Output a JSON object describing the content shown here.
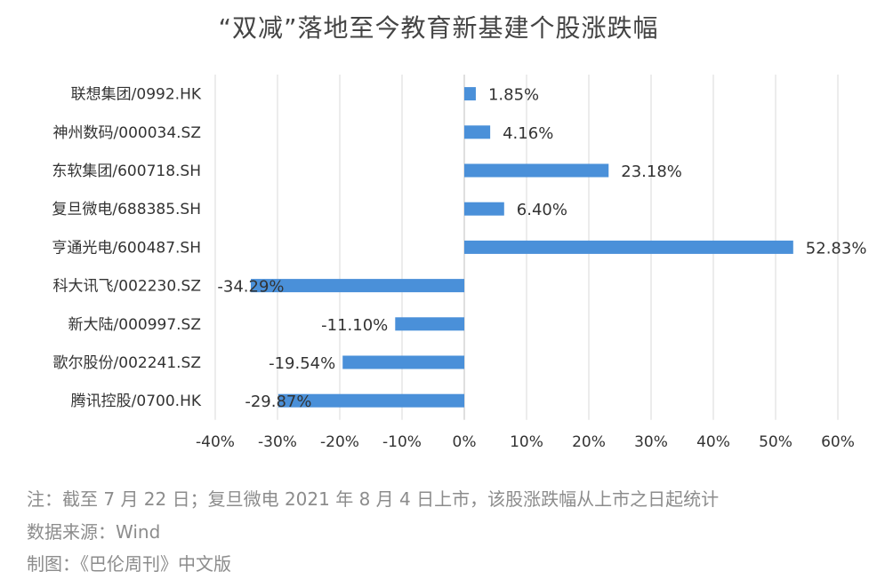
{
  "chart_data": {
    "type": "bar",
    "orientation": "horizontal",
    "title": "“双减”落地至今教育新基建个股涨跌幅",
    "categories": [
      "联想集团/0992.HK",
      "神州数码/000034.SZ",
      "东软集团/600718.SH",
      "复旦微电/688385.SH",
      "亨通光电/600487.SH",
      "科大讯飞/002230.SZ",
      "新大陆/000997.SZ",
      "歌尔股份/002241.SZ",
      "腾讯控股/0700.HK"
    ],
    "values": [
      1.85,
      4.16,
      23.18,
      6.4,
      52.83,
      -34.29,
      -11.1,
      -19.54,
      -29.87
    ],
    "data_labels": [
      "1.85%",
      "4.16%",
      "23.18%",
      "6.40%",
      "52.83%",
      "-34.29%",
      "-11.10%",
      "-19.54%",
      "-29.87%"
    ],
    "xlim": [
      -40,
      60
    ],
    "x_ticks": [
      -40,
      -30,
      -20,
      -10,
      0,
      10,
      20,
      30,
      40,
      50,
      60
    ],
    "x_tick_labels": [
      "-40%",
      "-30%",
      "-20%",
      "-10%",
      "0%",
      "10%",
      "20%",
      "30%",
      "40%",
      "50%",
      "60%"
    ],
    "grid": "vertical",
    "bar_color": "#4a90d9"
  },
  "notes": {
    "note1": "注：截至 7 月 22 日；复旦微电 2021 年 8 月 4 日上市，该股涨跌幅从上市之日起统计",
    "note2": "数据来源：Wind",
    "note3": "制图：《巴伦周刊》中文版"
  }
}
